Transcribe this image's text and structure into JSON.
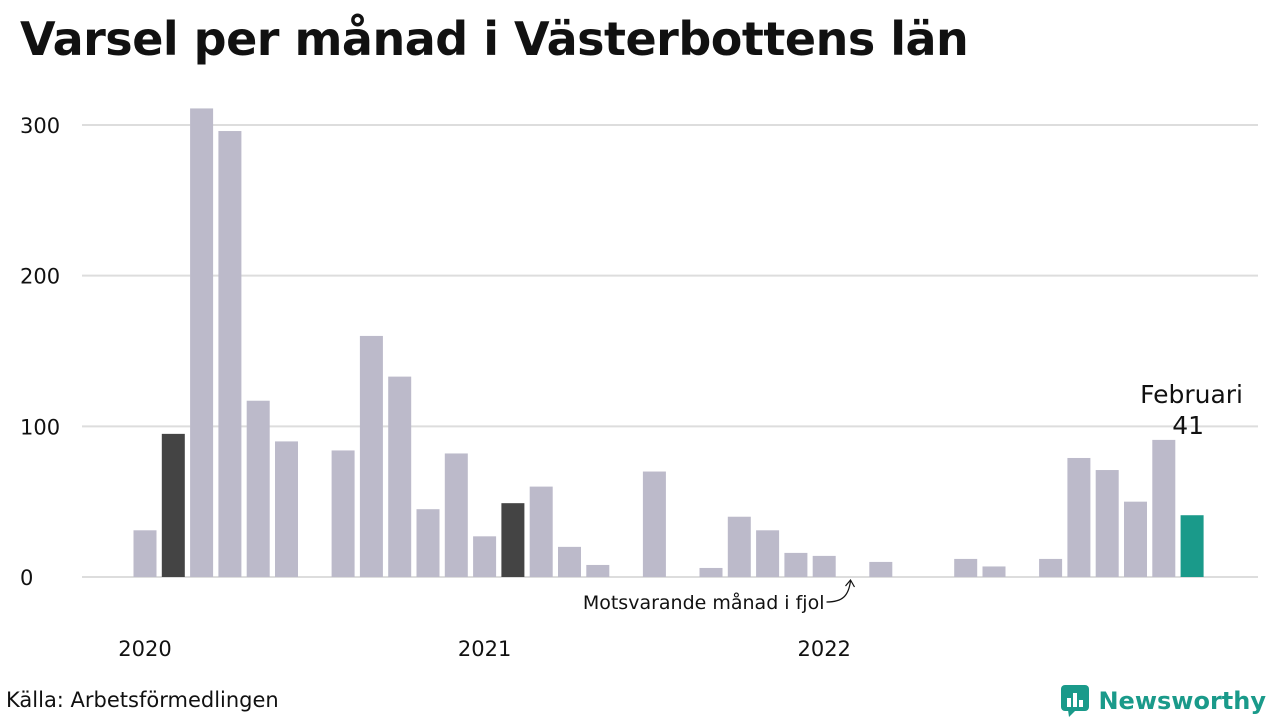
{
  "title": "Varsel per månad i Västerbottens län",
  "source": "Källa: Arbetsförmedlingen",
  "brand": {
    "name": "Newsworthy",
    "icon": "newsworthy-logo-icon",
    "color": "#1a9a8a"
  },
  "colors": {
    "default": "#bcbaca",
    "same_month_last_year": "#444444",
    "current": "#1a9a8a",
    "grid": "#dddddd"
  },
  "chart_data": {
    "type": "bar",
    "ylim": [
      0,
      320
    ],
    "yticks": [
      0,
      100,
      200,
      300
    ],
    "grid": true,
    "year_labels": [
      {
        "label": "2020",
        "month_index": 1
      },
      {
        "label": "2021",
        "month_index": 13
      },
      {
        "label": "2022",
        "month_index": 25
      }
    ],
    "values": [
      null,
      31,
      95,
      311,
      296,
      117,
      90,
      null,
      84,
      160,
      133,
      45,
      82,
      27,
      49,
      60,
      20,
      8,
      0,
      70,
      0,
      6,
      40,
      31,
      16,
      14,
      0,
      10,
      0,
      0,
      12,
      7,
      0,
      12,
      79,
      71,
      50,
      91,
      41
    ],
    "highlight_same_month": [
      2,
      14
    ],
    "highlight_current": 38,
    "callout": {
      "label": "Februari",
      "value": "41",
      "month_index": 38
    },
    "annotation": {
      "text": "Motsvarande månad i fjol",
      "month_index": 26
    }
  }
}
